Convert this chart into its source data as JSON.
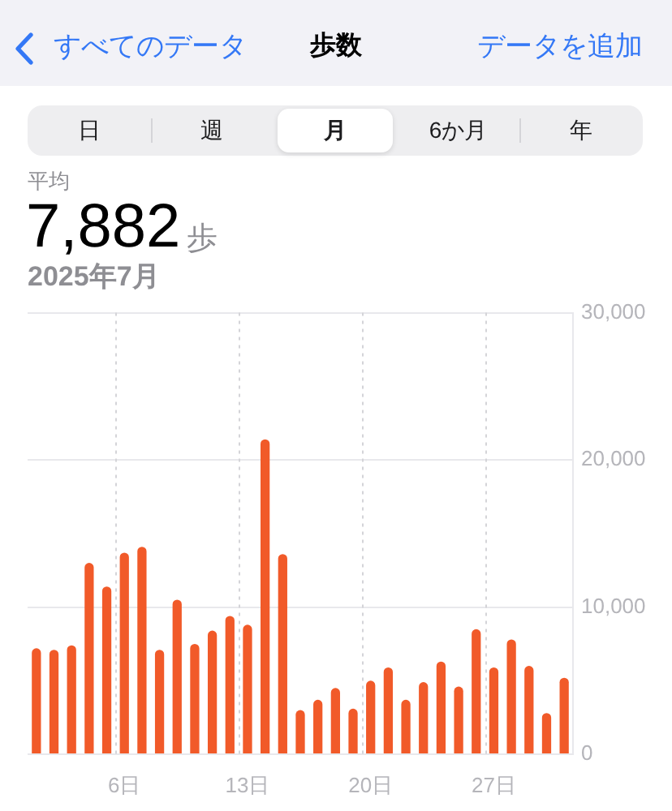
{
  "chart_data": {
    "type": "bar",
    "title": "歩数",
    "subtitle": "2025年7月",
    "annotations": [
      "すべてのデータ",
      "データを追加",
      "日",
      "週",
      "月",
      "6か月",
      "年",
      "平均",
      "7,882",
      "歩"
    ],
    "categories": [
      null,
      null,
      null,
      null,
      null,
      "6日",
      null,
      null,
      null,
      null,
      null,
      null,
      "13日",
      null,
      null,
      null,
      null,
      null,
      null,
      "20日",
      null,
      null,
      null,
      null,
      null,
      null,
      "27日",
      null,
      null,
      null,
      null
    ],
    "values": [
      7200,
      7100,
      7400,
      13000,
      11400,
      13700,
      14100,
      7100,
      10500,
      7500,
      8400,
      9400,
      8800,
      21400,
      13600,
      3000,
      3700,
      4500,
      3100,
      5000,
      5900,
      3700,
      4900,
      6300,
      4600,
      8500,
      5900,
      7800,
      6000,
      2800,
      5200
    ],
    "color": "#f15a29",
    "ylim": [
      0,
      30000
    ],
    "yticks": [
      0,
      {
        "value": 10000,
        "label": "10,000"
      },
      {
        "value": 20000,
        "label": "20,000"
      },
      {
        "value": 30000,
        "label": "30,000"
      }
    ],
    "grid": true
  }
}
